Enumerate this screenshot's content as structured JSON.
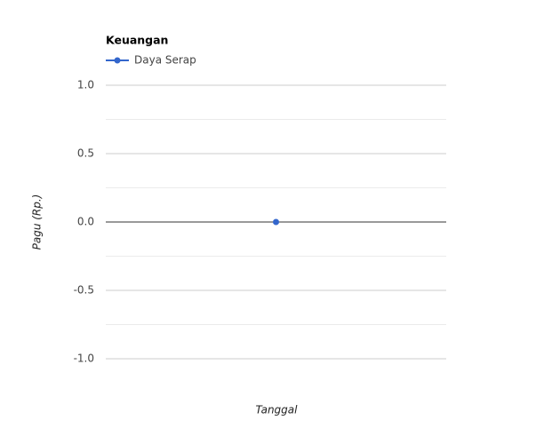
{
  "chart_data": {
    "type": "line",
    "title": "Keuangan",
    "x_label": "Tanggal",
    "y_label": "Pagu (Rp.)",
    "categories": [
      null
    ],
    "series": [
      {
        "name": "Daya Serap",
        "color": "#3366cc",
        "values": [
          0
        ]
      }
    ],
    "ylim": [
      -1,
      1
    ],
    "yticks": [
      {
        "value": -1,
        "label": "-1.0"
      },
      {
        "value": -0.5,
        "label": "-0.5"
      },
      {
        "value": 0,
        "label": "0.0"
      },
      {
        "value": 0.5,
        "label": "0.5"
      },
      {
        "value": 1,
        "label": "1.0"
      }
    ],
    "minor_yticks": [
      -0.75,
      -0.25,
      0.25,
      0.75
    ],
    "grid": true,
    "legend": "top"
  }
}
